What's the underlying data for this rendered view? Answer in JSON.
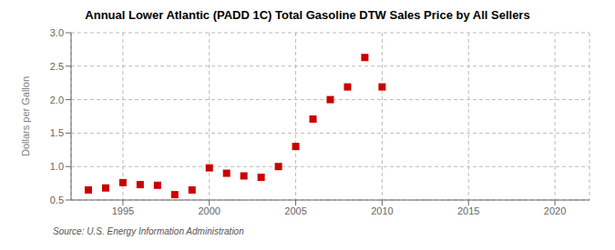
{
  "chart_data": {
    "type": "scatter",
    "title": "Annual Lower Atlantic (PADD 1C) Total Gasoline DTW Sales Price by All Sellers",
    "ylabel": "Dollars per Gallon",
    "annotation": "Source: U.S. Energy Information Administration",
    "x": [
      1993,
      1994,
      1995,
      1996,
      1997,
      1998,
      1999,
      2000,
      2001,
      2002,
      2003,
      2004,
      2005,
      2006,
      2007,
      2008,
      2009,
      2010
    ],
    "values": [
      0.65,
      0.68,
      0.76,
      0.73,
      0.72,
      0.58,
      0.65,
      0.98,
      0.9,
      0.86,
      0.84,
      1.0,
      1.3,
      1.71,
      2.0,
      2.19,
      2.63,
      2.19
    ],
    "color": "#cc0000",
    "marker": "square",
    "xlim": [
      1992,
      2022
    ],
    "ylim": [
      0.5,
      3.0
    ],
    "xticks": [
      1995,
      2000,
      2005,
      2010,
      2015,
      2020
    ],
    "yticks": [
      0.5,
      {
        "value": 1.0,
        "label": "1.0"
      },
      1.5,
      {
        "value": 2.0,
        "label": "2.0"
      },
      2.5,
      {
        "value": 3.0,
        "label": "3.0"
      }
    ],
    "grid": true
  }
}
